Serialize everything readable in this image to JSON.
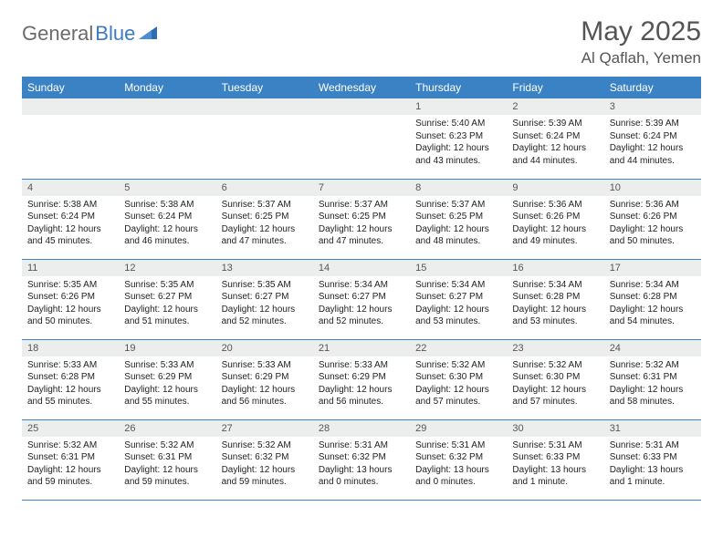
{
  "brand": {
    "part1": "General",
    "part2": "Blue"
  },
  "title": "May 2025",
  "location": "Al Qaflah, Yemen",
  "colors": {
    "header_bg": "#3b82c4",
    "header_text": "#ffffff",
    "daynum_bg": "#eceeee",
    "border": "#3b82c4",
    "brand_gray": "#6b6b6b",
    "brand_blue": "#3b7bc4"
  },
  "day_names": [
    "Sunday",
    "Monday",
    "Tuesday",
    "Wednesday",
    "Thursday",
    "Friday",
    "Saturday"
  ],
  "weeks": [
    [
      {
        "n": "",
        "sr": "",
        "ss": "",
        "dl": ""
      },
      {
        "n": "",
        "sr": "",
        "ss": "",
        "dl": ""
      },
      {
        "n": "",
        "sr": "",
        "ss": "",
        "dl": ""
      },
      {
        "n": "",
        "sr": "",
        "ss": "",
        "dl": ""
      },
      {
        "n": "1",
        "sr": "Sunrise: 5:40 AM",
        "ss": "Sunset: 6:23 PM",
        "dl": "Daylight: 12 hours and 43 minutes."
      },
      {
        "n": "2",
        "sr": "Sunrise: 5:39 AM",
        "ss": "Sunset: 6:24 PM",
        "dl": "Daylight: 12 hours and 44 minutes."
      },
      {
        "n": "3",
        "sr": "Sunrise: 5:39 AM",
        "ss": "Sunset: 6:24 PM",
        "dl": "Daylight: 12 hours and 44 minutes."
      }
    ],
    [
      {
        "n": "4",
        "sr": "Sunrise: 5:38 AM",
        "ss": "Sunset: 6:24 PM",
        "dl": "Daylight: 12 hours and 45 minutes."
      },
      {
        "n": "5",
        "sr": "Sunrise: 5:38 AM",
        "ss": "Sunset: 6:24 PM",
        "dl": "Daylight: 12 hours and 46 minutes."
      },
      {
        "n": "6",
        "sr": "Sunrise: 5:37 AM",
        "ss": "Sunset: 6:25 PM",
        "dl": "Daylight: 12 hours and 47 minutes."
      },
      {
        "n": "7",
        "sr": "Sunrise: 5:37 AM",
        "ss": "Sunset: 6:25 PM",
        "dl": "Daylight: 12 hours and 47 minutes."
      },
      {
        "n": "8",
        "sr": "Sunrise: 5:37 AM",
        "ss": "Sunset: 6:25 PM",
        "dl": "Daylight: 12 hours and 48 minutes."
      },
      {
        "n": "9",
        "sr": "Sunrise: 5:36 AM",
        "ss": "Sunset: 6:26 PM",
        "dl": "Daylight: 12 hours and 49 minutes."
      },
      {
        "n": "10",
        "sr": "Sunrise: 5:36 AM",
        "ss": "Sunset: 6:26 PM",
        "dl": "Daylight: 12 hours and 50 minutes."
      }
    ],
    [
      {
        "n": "11",
        "sr": "Sunrise: 5:35 AM",
        "ss": "Sunset: 6:26 PM",
        "dl": "Daylight: 12 hours and 50 minutes."
      },
      {
        "n": "12",
        "sr": "Sunrise: 5:35 AM",
        "ss": "Sunset: 6:27 PM",
        "dl": "Daylight: 12 hours and 51 minutes."
      },
      {
        "n": "13",
        "sr": "Sunrise: 5:35 AM",
        "ss": "Sunset: 6:27 PM",
        "dl": "Daylight: 12 hours and 52 minutes."
      },
      {
        "n": "14",
        "sr": "Sunrise: 5:34 AM",
        "ss": "Sunset: 6:27 PM",
        "dl": "Daylight: 12 hours and 52 minutes."
      },
      {
        "n": "15",
        "sr": "Sunrise: 5:34 AM",
        "ss": "Sunset: 6:27 PM",
        "dl": "Daylight: 12 hours and 53 minutes."
      },
      {
        "n": "16",
        "sr": "Sunrise: 5:34 AM",
        "ss": "Sunset: 6:28 PM",
        "dl": "Daylight: 12 hours and 53 minutes."
      },
      {
        "n": "17",
        "sr": "Sunrise: 5:34 AM",
        "ss": "Sunset: 6:28 PM",
        "dl": "Daylight: 12 hours and 54 minutes."
      }
    ],
    [
      {
        "n": "18",
        "sr": "Sunrise: 5:33 AM",
        "ss": "Sunset: 6:28 PM",
        "dl": "Daylight: 12 hours and 55 minutes."
      },
      {
        "n": "19",
        "sr": "Sunrise: 5:33 AM",
        "ss": "Sunset: 6:29 PM",
        "dl": "Daylight: 12 hours and 55 minutes."
      },
      {
        "n": "20",
        "sr": "Sunrise: 5:33 AM",
        "ss": "Sunset: 6:29 PM",
        "dl": "Daylight: 12 hours and 56 minutes."
      },
      {
        "n": "21",
        "sr": "Sunrise: 5:33 AM",
        "ss": "Sunset: 6:29 PM",
        "dl": "Daylight: 12 hours and 56 minutes."
      },
      {
        "n": "22",
        "sr": "Sunrise: 5:32 AM",
        "ss": "Sunset: 6:30 PM",
        "dl": "Daylight: 12 hours and 57 minutes."
      },
      {
        "n": "23",
        "sr": "Sunrise: 5:32 AM",
        "ss": "Sunset: 6:30 PM",
        "dl": "Daylight: 12 hours and 57 minutes."
      },
      {
        "n": "24",
        "sr": "Sunrise: 5:32 AM",
        "ss": "Sunset: 6:31 PM",
        "dl": "Daylight: 12 hours and 58 minutes."
      }
    ],
    [
      {
        "n": "25",
        "sr": "Sunrise: 5:32 AM",
        "ss": "Sunset: 6:31 PM",
        "dl": "Daylight: 12 hours and 59 minutes."
      },
      {
        "n": "26",
        "sr": "Sunrise: 5:32 AM",
        "ss": "Sunset: 6:31 PM",
        "dl": "Daylight: 12 hours and 59 minutes."
      },
      {
        "n": "27",
        "sr": "Sunrise: 5:32 AM",
        "ss": "Sunset: 6:32 PM",
        "dl": "Daylight: 12 hours and 59 minutes."
      },
      {
        "n": "28",
        "sr": "Sunrise: 5:31 AM",
        "ss": "Sunset: 6:32 PM",
        "dl": "Daylight: 13 hours and 0 minutes."
      },
      {
        "n": "29",
        "sr": "Sunrise: 5:31 AM",
        "ss": "Sunset: 6:32 PM",
        "dl": "Daylight: 13 hours and 0 minutes."
      },
      {
        "n": "30",
        "sr": "Sunrise: 5:31 AM",
        "ss": "Sunset: 6:33 PM",
        "dl": "Daylight: 13 hours and 1 minute."
      },
      {
        "n": "31",
        "sr": "Sunrise: 5:31 AM",
        "ss": "Sunset: 6:33 PM",
        "dl": "Daylight: 13 hours and 1 minute."
      }
    ]
  ]
}
